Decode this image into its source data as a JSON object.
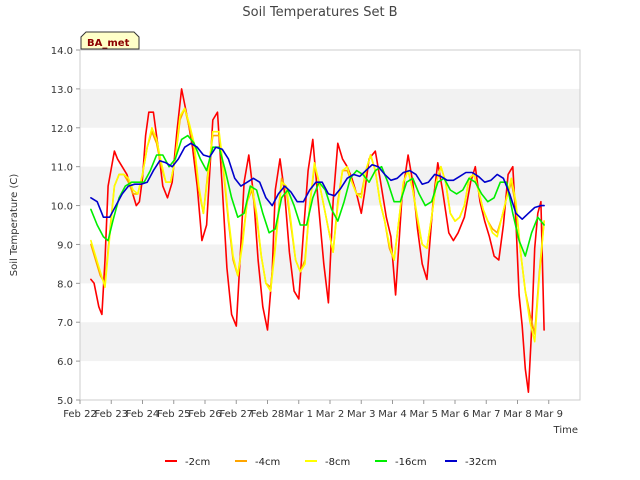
{
  "chart_data": {
    "type": "line",
    "title": "Soil Temperatures Set B",
    "xlabel": "Time",
    "ylabel": "Soil Temperature (C)",
    "ylim": [
      5.0,
      14.0
    ],
    "yticks": [
      "5.0",
      "6.0",
      "7.0",
      "8.0",
      "9.0",
      "10.0",
      "11.0",
      "12.0",
      "13.0",
      "14.0"
    ],
    "xlim": [
      0,
      16
    ],
    "xticks": [
      "Feb 22",
      "Feb 23",
      "Feb 24",
      "Feb 25",
      "Feb 26",
      "Feb 27",
      "Feb 28",
      "Mar 1",
      "Mar 2",
      "Mar 3",
      "Mar 4",
      "Mar 5",
      "Mar 6",
      "Mar 7",
      "Mar 8",
      "Mar 9"
    ],
    "grid": "horizontal bands",
    "legend_position": "bottom",
    "badge": "BA_met",
    "series": [
      {
        "name": "-2cm",
        "color": "#ff0000",
        "x": [
          0.35,
          0.45,
          0.6,
          0.65,
          0.7,
          0.8,
          0.9,
          1.1,
          1.2,
          1.35,
          1.5,
          1.65,
          1.8,
          1.9,
          2.0,
          2.1,
          2.2,
          2.35,
          2.5,
          2.65,
          2.8,
          2.95,
          3.1,
          3.25,
          3.45,
          3.6,
          3.75,
          3.9,
          4.05,
          4.25,
          4.4,
          4.55,
          4.7,
          4.85,
          5.0,
          5.15,
          5.25,
          5.4,
          5.55,
          5.7,
          5.85,
          6.0,
          6.15,
          6.25,
          6.4,
          6.55,
          6.7,
          6.85,
          7.0,
          7.15,
          7.3,
          7.45,
          7.6,
          7.8,
          7.95,
          8.1,
          8.25,
          8.4,
          8.55,
          8.7,
          8.85,
          9.0,
          9.1,
          9.25,
          9.45,
          9.6,
          9.8,
          9.95,
          10.1,
          10.3,
          10.5,
          10.65,
          10.8,
          10.95,
          11.1,
          11.3,
          11.45,
          11.6,
          11.8,
          11.95,
          12.1,
          12.3,
          12.5,
          12.65,
          12.8,
          12.95,
          13.1,
          13.25,
          13.4,
          13.55,
          13.7,
          13.85,
          13.95,
          14.05,
          14.15,
          14.25,
          14.35,
          14.45,
          14.55,
          14.65,
          14.75,
          14.85
        ],
        "y": [
          8.1,
          8.0,
          7.4,
          7.3,
          7.2,
          8.6,
          10.5,
          11.4,
          11.2,
          11.0,
          10.8,
          10.4,
          10.0,
          10.1,
          10.7,
          11.8,
          12.4,
          12.4,
          11.5,
          10.5,
          10.2,
          10.6,
          11.9,
          13.0,
          12.2,
          11.5,
          10.5,
          9.1,
          9.5,
          12.2,
          12.4,
          10.5,
          8.4,
          7.2,
          6.9,
          9.0,
          10.6,
          11.3,
          10.3,
          8.6,
          7.4,
          6.8,
          8.3,
          10.4,
          11.2,
          10.3,
          8.8,
          7.8,
          7.6,
          9.3,
          10.9,
          11.7,
          10.3,
          8.5,
          7.5,
          10.1,
          11.6,
          11.2,
          11.0,
          10.7,
          10.3,
          9.8,
          10.3,
          11.2,
          11.4,
          10.7,
          9.7,
          9.2,
          7.7,
          10.2,
          11.3,
          10.6,
          9.4,
          8.5,
          8.1,
          10.1,
          11.1,
          10.4,
          9.3,
          9.1,
          9.3,
          9.7,
          10.6,
          11.0,
          10.1,
          9.6,
          9.2,
          8.7,
          8.6,
          9.5,
          10.8,
          11.0,
          9.6,
          7.7,
          6.9,
          5.8,
          5.2,
          6.8,
          8.9,
          9.8,
          10.1,
          6.8
        ]
      },
      {
        "name": "-4cm",
        "color": "#ffa500",
        "x": [
          0.35,
          0.5,
          0.65,
          0.8,
          0.95,
          1.1,
          1.25,
          1.4,
          1.55,
          1.7,
          1.85,
          2.0,
          2.15,
          2.3,
          2.45,
          2.6,
          2.75,
          2.9,
          3.05,
          3.2,
          3.35,
          3.5,
          3.65,
          3.8,
          3.95,
          4.1,
          4.25,
          4.45,
          4.6,
          4.75,
          4.9,
          5.05,
          5.2,
          5.35,
          5.5,
          5.65,
          5.8,
          5.95,
          6.1,
          6.25,
          6.45,
          6.6,
          6.75,
          6.9,
          7.05,
          7.2,
          7.35,
          7.5,
          7.65,
          7.8,
          7.95,
          8.1,
          8.25,
          8.4,
          8.55,
          8.7,
          8.85,
          9.0,
          9.15,
          9.3,
          9.45,
          9.6,
          9.75,
          9.9,
          10.05,
          10.2,
          10.35,
          10.5,
          10.65,
          10.8,
          10.95,
          11.1,
          11.25,
          11.4,
          11.55,
          11.7,
          11.85,
          12.0,
          12.15,
          12.3,
          12.45,
          12.6,
          12.75,
          12.9,
          13.05,
          13.2,
          13.35,
          13.5,
          13.65,
          13.8,
          13.95,
          14.1,
          14.25,
          14.4,
          14.55,
          14.7,
          14.85
        ],
        "y": [
          9.0,
          8.6,
          8.2,
          8.0,
          9.3,
          10.5,
          10.8,
          10.8,
          10.6,
          10.3,
          10.3,
          10.8,
          11.5,
          11.9,
          11.6,
          11.0,
          10.6,
          10.6,
          11.2,
          12.2,
          12.5,
          12.0,
          11.5,
          10.4,
          9.8,
          10.9,
          11.8,
          11.8,
          10.8,
          9.6,
          8.6,
          8.2,
          9.1,
          10.1,
          10.4,
          9.7,
          8.7,
          8.0,
          7.9,
          9.0,
          10.7,
          10.4,
          9.5,
          8.6,
          8.3,
          8.6,
          10.0,
          11.0,
          10.6,
          10.0,
          9.4,
          8.8,
          10.1,
          10.9,
          10.9,
          10.6,
          10.3,
          10.3,
          10.9,
          11.3,
          10.9,
          10.1,
          9.6,
          8.9,
          8.6,
          9.6,
          10.6,
          10.9,
          10.4,
          9.6,
          9.0,
          8.9,
          9.7,
          10.6,
          11.0,
          10.6,
          9.8,
          9.6,
          9.7,
          10.0,
          10.7,
          10.8,
          10.4,
          9.9,
          9.6,
          9.4,
          9.3,
          9.7,
          10.2,
          10.6,
          10.0,
          8.8,
          7.8,
          7.2,
          6.7,
          8.3,
          9.6
        ]
      },
      {
        "name": "-8cm",
        "color": "#ffff00",
        "x": [
          0.35,
          0.5,
          0.65,
          0.8,
          0.95,
          1.1,
          1.25,
          1.4,
          1.55,
          1.7,
          1.85,
          2.0,
          2.15,
          2.3,
          2.45,
          2.6,
          2.75,
          2.9,
          3.05,
          3.2,
          3.35,
          3.5,
          3.65,
          3.8,
          3.95,
          4.1,
          4.25,
          4.45,
          4.6,
          4.75,
          4.9,
          5.05,
          5.2,
          5.35,
          5.5,
          5.65,
          5.8,
          5.95,
          6.1,
          6.25,
          6.45,
          6.6,
          6.75,
          6.9,
          7.05,
          7.2,
          7.35,
          7.5,
          7.65,
          7.8,
          7.95,
          8.1,
          8.25,
          8.4,
          8.55,
          8.7,
          8.85,
          9.0,
          9.15,
          9.3,
          9.45,
          9.6,
          9.75,
          9.9,
          10.05,
          10.2,
          10.35,
          10.5,
          10.65,
          10.8,
          10.95,
          11.1,
          11.25,
          11.4,
          11.55,
          11.7,
          11.85,
          12.0,
          12.15,
          12.3,
          12.45,
          12.6,
          12.75,
          12.9,
          13.05,
          13.2,
          13.35,
          13.5,
          13.65,
          13.8,
          13.95,
          14.1,
          14.25,
          14.4,
          14.55,
          14.7,
          14.85
        ],
        "y": [
          9.1,
          8.7,
          8.3,
          7.9,
          9.2,
          10.5,
          10.8,
          10.8,
          10.7,
          10.4,
          10.3,
          10.8,
          11.5,
          12.0,
          11.7,
          11.1,
          10.6,
          10.6,
          11.2,
          12.3,
          12.5,
          12.1,
          11.6,
          10.5,
          9.8,
          10.8,
          11.9,
          11.9,
          10.9,
          9.7,
          8.7,
          8.2,
          9.0,
          10.1,
          10.5,
          9.8,
          8.7,
          8.0,
          7.8,
          8.9,
          10.6,
          10.5,
          9.6,
          8.6,
          8.3,
          8.5,
          10.0,
          11.1,
          10.6,
          10.0,
          9.4,
          8.8,
          10.0,
          10.9,
          11.0,
          10.6,
          10.3,
          10.2,
          10.9,
          11.3,
          10.9,
          10.1,
          9.6,
          9.0,
          8.6,
          9.6,
          10.6,
          10.9,
          10.4,
          9.7,
          9.0,
          8.9,
          9.7,
          10.6,
          11.0,
          10.6,
          9.8,
          9.6,
          9.7,
          10.0,
          10.7,
          10.8,
          10.4,
          9.9,
          9.6,
          9.3,
          9.2,
          9.7,
          10.2,
          10.7,
          10.1,
          8.8,
          7.8,
          7.0,
          6.5,
          8.2,
          9.6
        ]
      },
      {
        "name": "-16cm",
        "color": "#00ee00",
        "x": [
          0.35,
          0.55,
          0.75,
          0.9,
          1.05,
          1.25,
          1.45,
          1.65,
          1.85,
          2.05,
          2.25,
          2.45,
          2.65,
          2.85,
          3.05,
          3.25,
          3.45,
          3.65,
          3.85,
          4.05,
          4.25,
          4.45,
          4.65,
          4.85,
          5.05,
          5.25,
          5.45,
          5.65,
          5.85,
          6.05,
          6.25,
          6.45,
          6.65,
          6.85,
          7.05,
          7.25,
          7.45,
          7.65,
          7.85,
          8.05,
          8.25,
          8.45,
          8.65,
          8.85,
          9.05,
          9.25,
          9.45,
          9.65,
          9.85,
          10.05,
          10.25,
          10.45,
          10.65,
          10.85,
          11.05,
          11.25,
          11.45,
          11.65,
          11.85,
          12.05,
          12.25,
          12.45,
          12.65,
          12.85,
          13.05,
          13.25,
          13.45,
          13.65,
          13.85,
          14.05,
          14.25,
          14.45,
          14.65,
          14.85
        ],
        "y": [
          9.9,
          9.5,
          9.2,
          9.1,
          9.6,
          10.2,
          10.5,
          10.6,
          10.6,
          10.6,
          10.9,
          11.3,
          11.3,
          11.0,
          11.2,
          11.7,
          11.8,
          11.6,
          11.2,
          10.9,
          11.5,
          11.5,
          10.9,
          10.2,
          9.7,
          9.8,
          10.5,
          10.4,
          9.8,
          9.3,
          9.4,
          10.2,
          10.4,
          10.0,
          9.5,
          9.5,
          10.2,
          10.6,
          10.4,
          9.9,
          9.6,
          10.1,
          10.7,
          10.9,
          10.8,
          10.6,
          10.9,
          11.0,
          10.6,
          10.1,
          10.1,
          10.6,
          10.7,
          10.3,
          10.0,
          10.1,
          10.6,
          10.7,
          10.4,
          10.3,
          10.4,
          10.7,
          10.6,
          10.3,
          10.1,
          10.2,
          10.6,
          10.6,
          9.8,
          9.1,
          8.7,
          9.3,
          9.7,
          9.5
        ]
      },
      {
        "name": "-32cm",
        "color": "#0000cc",
        "x": [
          0.35,
          0.55,
          0.75,
          0.95,
          1.15,
          1.35,
          1.55,
          1.75,
          1.95,
          2.15,
          2.35,
          2.55,
          2.75,
          2.95,
          3.15,
          3.35,
          3.55,
          3.75,
          3.95,
          4.15,
          4.35,
          4.55,
          4.75,
          4.95,
          5.15,
          5.35,
          5.55,
          5.75,
          5.95,
          6.15,
          6.35,
          6.55,
          6.75,
          6.95,
          7.15,
          7.35,
          7.55,
          7.75,
          7.95,
          8.15,
          8.35,
          8.55,
          8.75,
          8.95,
          9.15,
          9.35,
          9.55,
          9.75,
          9.95,
          10.15,
          10.35,
          10.55,
          10.75,
          10.95,
          11.15,
          11.35,
          11.55,
          11.75,
          11.95,
          12.15,
          12.35,
          12.55,
          12.75,
          12.95,
          13.15,
          13.35,
          13.55,
          13.75,
          13.95,
          14.15,
          14.35,
          14.55,
          14.75,
          14.85
        ],
        "y": [
          10.2,
          10.1,
          9.7,
          9.7,
          10.0,
          10.3,
          10.5,
          10.55,
          10.55,
          10.6,
          10.9,
          11.15,
          11.1,
          11.0,
          11.2,
          11.5,
          11.6,
          11.5,
          11.3,
          11.25,
          11.5,
          11.45,
          11.2,
          10.7,
          10.5,
          10.6,
          10.7,
          10.6,
          10.2,
          10.0,
          10.3,
          10.5,
          10.35,
          10.1,
          10.1,
          10.4,
          10.6,
          10.6,
          10.3,
          10.25,
          10.45,
          10.7,
          10.8,
          10.75,
          10.9,
          11.05,
          11.0,
          10.8,
          10.65,
          10.7,
          10.85,
          10.9,
          10.8,
          10.55,
          10.6,
          10.8,
          10.75,
          10.65,
          10.65,
          10.75,
          10.85,
          10.85,
          10.75,
          10.6,
          10.65,
          10.8,
          10.7,
          10.3,
          9.8,
          9.65,
          9.8,
          9.95,
          10.0,
          10.0
        ]
      }
    ]
  }
}
